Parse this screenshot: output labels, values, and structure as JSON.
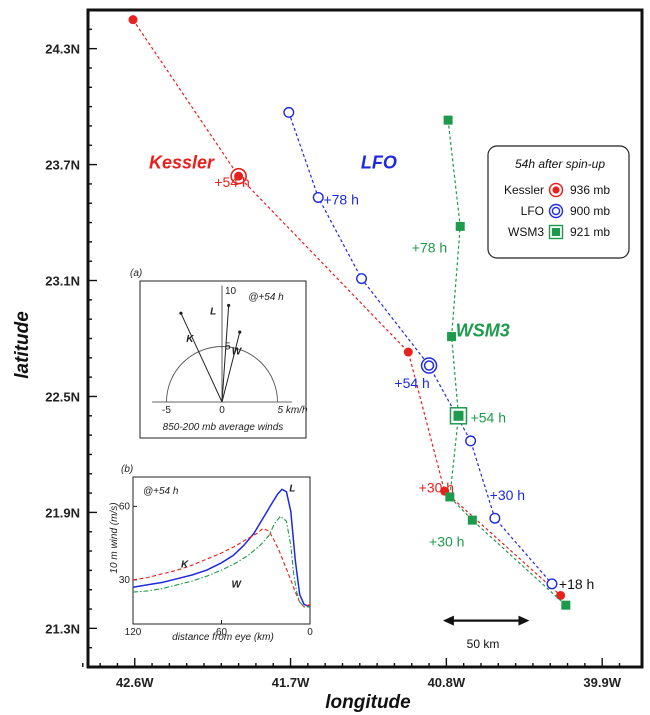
{
  "chart_data": {
    "type": "scatter",
    "xlabel": "longitude",
    "ylabel": "latitude",
    "xlim": [
      42.87,
      39.67
    ],
    "ylim": [
      21.1,
      24.5
    ],
    "x_ticks": [
      {
        "value": 42.6,
        "label": "42.6W"
      },
      {
        "value": 41.7,
        "label": "41.7W"
      },
      {
        "value": 40.8,
        "label": "40.8W"
      },
      {
        "value": 39.9,
        "label": "39.9W"
      }
    ],
    "y_ticks": [
      {
        "value": 24.3,
        "label": "24.3N"
      },
      {
        "value": 23.7,
        "label": "23.7N"
      },
      {
        "value": 23.1,
        "label": "23.1N"
      },
      {
        "value": 22.5,
        "label": "22.5N"
      },
      {
        "value": 21.9,
        "label": "21.9N"
      },
      {
        "value": 21.3,
        "label": "21.3N"
      }
    ],
    "series": [
      {
        "name": "Kessler",
        "color": "#e8201e",
        "marker": "filled-circle",
        "points": [
          [
            42.61,
            24.45
          ],
          [
            42.0,
            23.64
          ],
          [
            41.02,
            22.73
          ],
          [
            40.81,
            22.01
          ],
          [
            40.14,
            21.47
          ]
        ],
        "label": "Kessler",
        "label_at": [
          42.33,
          23.68
        ]
      },
      {
        "name": "LFO",
        "color": "#1e2adf",
        "marker": "open-circle",
        "points": [
          [
            41.71,
            23.97
          ],
          [
            41.54,
            23.53
          ],
          [
            41.29,
            23.11
          ],
          [
            40.9,
            22.66
          ],
          [
            40.66,
            22.27
          ],
          [
            40.52,
            21.87
          ],
          [
            40.19,
            21.53
          ]
        ],
        "label": "LFO",
        "label_at": [
          41.19,
          23.68
        ]
      },
      {
        "name": "WSM3",
        "color": "#1e9a4c",
        "marker": "filled-square",
        "points": [
          [
            40.79,
            23.93
          ],
          [
            40.72,
            23.38
          ],
          [
            40.77,
            22.81
          ],
          [
            40.73,
            22.4
          ],
          [
            40.78,
            21.98
          ],
          [
            40.65,
            21.86
          ],
          [
            40.11,
            21.42
          ]
        ],
        "label": "WSM3",
        "label_at": [
          40.59,
          22.81
        ]
      }
    ],
    "time_labels": [
      {
        "text": "+54 h",
        "color": "#e8201e",
        "at": [
          42.14,
          23.61
        ]
      },
      {
        "text": "+78 h",
        "color": "#1e2adf",
        "at": [
          41.51,
          23.52
        ]
      },
      {
        "text": "+78 h",
        "color": "#1e9a4c",
        "at": [
          41.0,
          23.27
        ]
      },
      {
        "text": "+54 h",
        "color": "#1e2adf",
        "at": [
          41.1,
          22.57
        ]
      },
      {
        "text": "+54 h",
        "color": "#1e9a4c",
        "at": [
          40.66,
          22.39
        ]
      },
      {
        "text": "+30 h",
        "color": "#e8201e",
        "at": [
          40.96,
          22.03
        ]
      },
      {
        "text": "+30 h",
        "color": "#1e2adf",
        "at": [
          40.55,
          21.99
        ]
      },
      {
        "text": "+30 h",
        "color": "#1e9a4c",
        "at": [
          40.9,
          21.75
        ]
      },
      {
        "text": "+18 h",
        "color": "#111111",
        "at": [
          40.15,
          21.53
        ]
      }
    ],
    "highlight_markers": [
      {
        "series": "Kessler",
        "at": [
          42.0,
          23.64
        ]
      },
      {
        "series": "LFO",
        "at": [
          40.9,
          22.66
        ]
      },
      {
        "series": "WSM3",
        "at": [
          40.73,
          22.4
        ]
      }
    ],
    "scale_bar": {
      "label": "50 km",
      "from": 40.82,
      "to": 40.32,
      "y": 21.34
    },
    "legend": {
      "title": "54h after spin-up",
      "placement": "top-right",
      "entries": [
        {
          "name": "Kessler",
          "value": "936 mb",
          "color": "#e8201e",
          "marker": "ring-dot"
        },
        {
          "name": "LFO",
          "value": "900 mb",
          "color": "#1e2adf",
          "marker": "double-circle"
        },
        {
          "name": "WSM3",
          "value": "921 mb",
          "color": "#1e9a4c",
          "marker": "square-in-square"
        }
      ]
    },
    "inset_a": {
      "panel_label": "(a)",
      "time_label": "@+54 h",
      "caption": "850-200 mb average winds",
      "x_ticks": [
        {
          "value": -5,
          "label": "-5"
        },
        {
          "value": 0,
          "label": "0"
        },
        {
          "value": 5,
          "label": "5 km/h"
        }
      ],
      "y_ticks": [
        {
          "value": 5,
          "label": "5"
        },
        {
          "value": 10,
          "label": "10"
        }
      ],
      "xlim": [
        -6.3,
        6.3
      ],
      "ylim": [
        0,
        10.5
      ],
      "vectors": [
        {
          "name": "K",
          "dx": -3.7,
          "dy": 8.0,
          "label_at": [
            -2.9,
            5.4
          ]
        },
        {
          "name": "L",
          "dx": 0.6,
          "dy": 8.7,
          "label_at": [
            -0.8,
            7.9
          ]
        },
        {
          "name": "W",
          "dx": 1.6,
          "dy": 6.3,
          "label_at": [
            1.3,
            4.3
          ]
        }
      ]
    },
    "inset_b": {
      "panel_label": "(b)",
      "time_label": "@+54 h",
      "xlabel": "distance from eye (km)",
      "ylabel": "10 m wind (m/s)",
      "xlim": [
        120,
        0
      ],
      "ylim": [
        12,
        72
      ],
      "x_ticks": [
        {
          "value": 120,
          "label": "120"
        },
        {
          "value": 60,
          "label": "60"
        },
        {
          "value": 0,
          "label": "0"
        }
      ],
      "y_ticks": [
        {
          "value": 30,
          "label": "30"
        },
        {
          "value": 60,
          "label": "60"
        }
      ],
      "series": [
        {
          "name": "L",
          "color": "#1e2adf",
          "style": "solid",
          "label_at": [
            12,
            66
          ],
          "x": [
            120,
            110,
            100,
            90,
            80,
            70,
            60,
            52,
            45,
            38,
            32,
            26,
            22,
            19,
            16,
            13,
            10,
            7,
            4,
            0
          ],
          "y": [
            27,
            28,
            29,
            30.5,
            32,
            34,
            37,
            40,
            44,
            49,
            55,
            61,
            65,
            67,
            66,
            58,
            38,
            24,
            20,
            19
          ]
        },
        {
          "name": "K",
          "color": "#e8201e",
          "style": "dashed",
          "label_at": [
            85,
            35
          ],
          "x": [
            120,
            110,
            100,
            90,
            80,
            70,
            60,
            50,
            42,
            36,
            32,
            28,
            25,
            21,
            17,
            13,
            10,
            7,
            4,
            0
          ],
          "y": [
            30,
            31,
            32.5,
            34,
            36,
            38.5,
            41,
            44,
            47,
            49,
            51,
            50,
            47,
            42,
            36,
            30,
            25,
            21,
            19,
            20
          ]
        },
        {
          "name": "W",
          "color": "#1e9a4c",
          "style": "dashdot",
          "label_at": [
            50,
            27
          ],
          "x": [
            120,
            110,
            100,
            90,
            80,
            70,
            60,
            50,
            42,
            34,
            28,
            24,
            20,
            16,
            13,
            11,
            9,
            7,
            4,
            0
          ],
          "y": [
            25,
            25.5,
            26.5,
            28,
            29.5,
            31.5,
            34,
            37,
            40,
            44,
            48,
            53,
            56,
            54,
            44,
            32,
            25,
            21,
            19,
            19
          ]
        }
      ]
    }
  }
}
